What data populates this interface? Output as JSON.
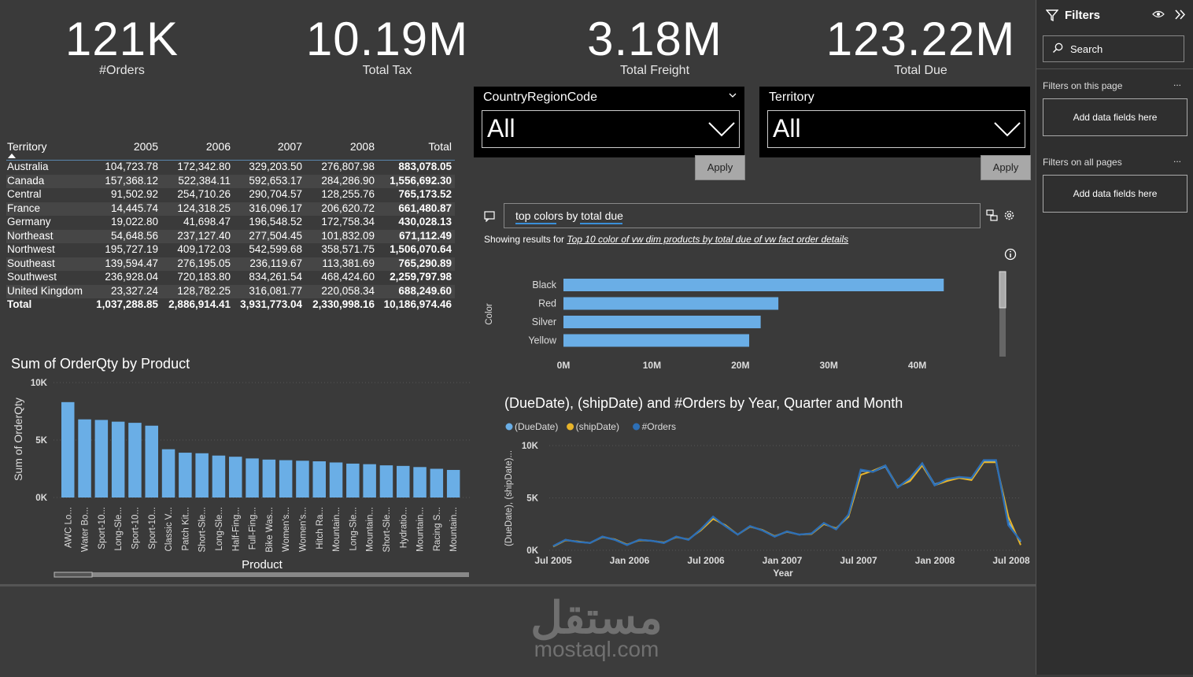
{
  "cards": [
    {
      "value": "121K",
      "label": "#Orders"
    },
    {
      "value": "10.19M",
      "label": "Total Tax"
    },
    {
      "value": "3.18M",
      "label": "Total Freight"
    },
    {
      "value": "123.22M",
      "label": "Total Due"
    }
  ],
  "slicers": [
    {
      "title": "CountryRegionCode",
      "value": "All",
      "apply": "Apply"
    },
    {
      "title": "Territory",
      "value": "All",
      "apply": "Apply"
    }
  ],
  "matrix": {
    "headers": [
      "Territory",
      "2005",
      "2006",
      "2007",
      "2008",
      "Total"
    ],
    "rows": [
      [
        "Australia",
        "104,723.78",
        "172,342.80",
        "329,203.50",
        "276,807.98",
        "883,078.05"
      ],
      [
        "Canada",
        "157,368.12",
        "522,384.11",
        "592,653.17",
        "284,286.90",
        "1,556,692.30"
      ],
      [
        "Central",
        "91,502.92",
        "254,710.26",
        "290,704.57",
        "128,255.76",
        "765,173.52"
      ],
      [
        "France",
        "14,445.74",
        "124,318.25",
        "316,096.17",
        "206,620.72",
        "661,480.87"
      ],
      [
        "Germany",
        "19,022.80",
        "41,698.47",
        "196,548.52",
        "172,758.34",
        "430,028.13"
      ],
      [
        "Northeast",
        "54,648.56",
        "237,127.40",
        "277,504.45",
        "101,832.09",
        "671,112.49"
      ],
      [
        "Northwest",
        "195,727.19",
        "409,172.03",
        "542,599.68",
        "358,571.75",
        "1,506,070.64"
      ],
      [
        "Southeast",
        "139,594.47",
        "276,195.05",
        "236,119.67",
        "113,381.69",
        "765,290.89"
      ],
      [
        "Southwest",
        "236,928.04",
        "720,183.80",
        "834,261.54",
        "468,424.60",
        "2,259,797.98"
      ],
      [
        "United Kingdom",
        "23,327.24",
        "128,782.25",
        "316,081.77",
        "220,058.34",
        "688,249.60"
      ]
    ],
    "total": [
      "Total",
      "1,037,288.85",
      "2,886,914.41",
      "3,931,773.04",
      "2,330,998.16",
      "10,186,974.46"
    ]
  },
  "qa": {
    "query": "top colors by total due",
    "result_prefix": "Showing results for",
    "result_link": "Top 10 color of vw dim products by total due of vw fact order details"
  },
  "filters": {
    "title": "Filters",
    "search": "Search",
    "this_page": "Filters on this page",
    "all_pages": "Filters on all pages",
    "add_this": "Add data fields here",
    "add_all": "Add data fields here",
    "more": "..."
  },
  "watermark": {
    "arabic": "مستقل",
    "latin": "mostaql.com"
  },
  "colors": {
    "bar": "#6aaee6",
    "line_due": "#6aaee6",
    "line_ship": "#e8b42a",
    "line_orders": "#2d6fb6",
    "accent": "#3a8fd9"
  },
  "chart_data": [
    {
      "type": "bar",
      "orientation": "horizontal",
      "title": "",
      "ylabel": "Color",
      "categories": [
        "Black",
        "Red",
        "Silver",
        "Yellow"
      ],
      "values": [
        43000000,
        24300000,
        22300000,
        21000000
      ],
      "xticks": [
        "0M",
        "10M",
        "20M",
        "30M",
        "40M"
      ],
      "xlim": [
        0,
        46000000
      ]
    },
    {
      "type": "bar",
      "title": "Sum of OrderQty by Product",
      "xlabel": "Product",
      "ylabel": "Sum of OrderQty",
      "yticks": [
        "0K",
        "5K",
        "10K"
      ],
      "ylim": [
        0,
        10000
      ],
      "categories": [
        "AWC Lo...",
        "Water Bo...",
        "Sport-10...",
        "Long-Sle...",
        "Sport-10...",
        "Sport-10...",
        "Classic V...",
        "Patch Kit...",
        "Short-Sle...",
        "Long-Sle...",
        "Half-Fing...",
        "Full-Fing...",
        "Bike Was...",
        "Women's...",
        "Women's...",
        "Hitch Ra...",
        "Mountain...",
        "Long-Sle...",
        "Mountain...",
        "Short-Sle...",
        "Hydratio...",
        "Mountain...",
        "Racing S...",
        "Mountain..."
      ],
      "values": [
        8300,
        6800,
        6750,
        6600,
        6500,
        6250,
        4200,
        3900,
        3850,
        3650,
        3550,
        3400,
        3300,
        3250,
        3200,
        3150,
        3050,
        2950,
        2900,
        2800,
        2750,
        2650,
        2500,
        2400
      ]
    },
    {
      "type": "line",
      "title": "(DueDate), (shipDate) and #Orders by Year, Quarter and Month",
      "xlabel": "Year",
      "ylabel": "(DueDate), (shipDate)...",
      "xticks": [
        "Jul 2005",
        "Jan 2006",
        "Jul 2006",
        "Jan 2007",
        "Jul 2007",
        "Jan 2008",
        "Jul 2008"
      ],
      "yticks": [
        "0K",
        "5K",
        "10K"
      ],
      "ylim": [
        0,
        10000
      ],
      "legend": "top-left",
      "series": [
        {
          "name": "(DueDate)",
          "values": [
            400,
            1000,
            800,
            700,
            1300,
            1000,
            500,
            1000,
            900,
            700,
            1300,
            1000,
            2000,
            3100,
            2300,
            1500,
            2300,
            1900,
            1300,
            1800,
            1500,
            1600,
            2600,
            2000,
            3400,
            7600,
            7500,
            8000,
            6000,
            6800,
            8300,
            6300,
            6700,
            7000,
            6800,
            8500,
            8500,
            2700,
            800
          ]
        },
        {
          "name": "(shipDate)",
          "values": [
            350,
            950,
            850,
            700,
            1250,
            1050,
            550,
            950,
            900,
            750,
            1250,
            1050,
            1900,
            3000,
            2400,
            1500,
            2250,
            1950,
            1350,
            1750,
            1500,
            1550,
            2500,
            2100,
            3200,
            7200,
            7600,
            8100,
            6100,
            6600,
            8100,
            6200,
            6600,
            6900,
            6700,
            8400,
            8400,
            3200,
            500
          ]
        },
        {
          "name": "#Orders",
          "values": [
            400,
            1000,
            800,
            700,
            1300,
            1000,
            500,
            1000,
            900,
            700,
            1300,
            1000,
            2000,
            3200,
            2300,
            1500,
            2300,
            1900,
            1300,
            1800,
            1500,
            1600,
            2600,
            2000,
            3400,
            7700,
            7500,
            8100,
            6000,
            6900,
            8300,
            6200,
            6800,
            7000,
            6900,
            8600,
            8600,
            2400,
            900
          ]
        }
      ]
    }
  ]
}
